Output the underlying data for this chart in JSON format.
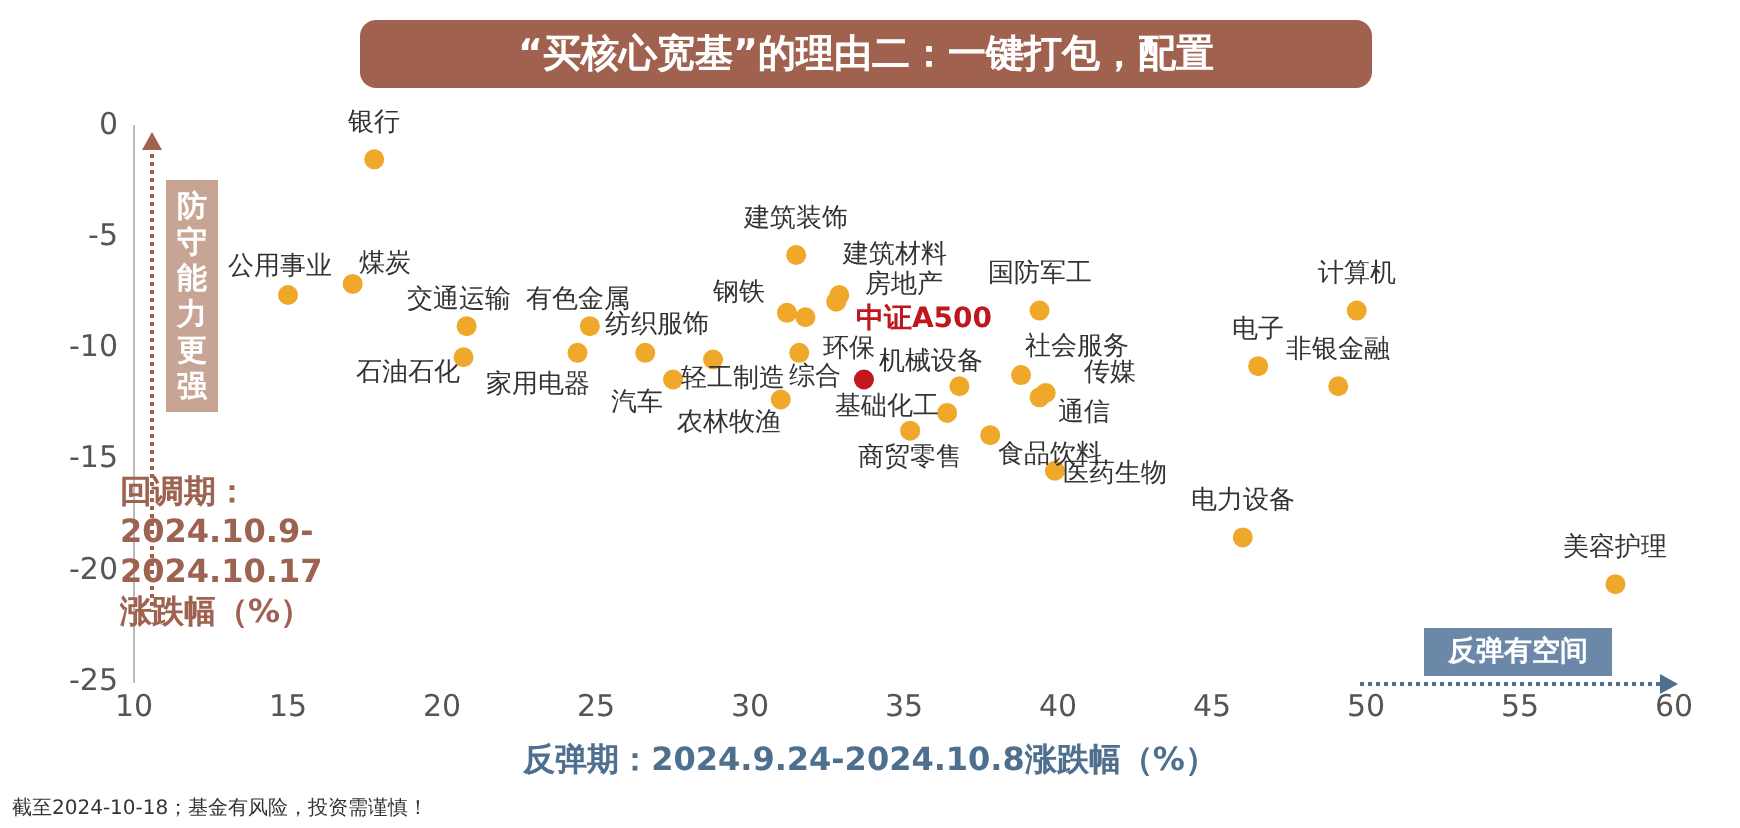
{
  "chart_data": {
    "type": "scatter",
    "title": "“买核心宽基”的理由二：一键打包，配置",
    "xlabel": "反弹期：2024.9.24-2024.10.8涨跌幅（%）",
    "ylabel": "回调期：\n2024.10.9-\n2024.10.17\n涨跌幅（%）",
    "xlim": [
      10,
      60
    ],
    "xticks": [
      10,
      15,
      20,
      25,
      30,
      35,
      40,
      45,
      50,
      55,
      60
    ],
    "ylim": [
      -25,
      0
    ],
    "yticks": [
      -25,
      -20,
      -15,
      -10,
      -5,
      0
    ],
    "grid": false,
    "legend": false,
    "marker": "circle",
    "annotations": [
      "防守能力更强",
      "反弹有空间",
      "截至2024-10-18；基金有风险，投资需谨慎！"
    ],
    "series": [
      {
        "name": "银行",
        "color": "#f0a82a",
        "x": [
          17.8
        ],
        "values": [
          -1.5
        ]
      },
      {
        "name": "公用事业",
        "color": "#f0a82a",
        "x": [
          15.0
        ],
        "values": [
          -7.6
        ]
      },
      {
        "name": "煤炭",
        "color": "#f0a82a",
        "x": [
          17.1
        ],
        "values": [
          -7.1
        ]
      },
      {
        "name": "交通运输",
        "color": "#f0a82a",
        "x": [
          20.8
        ],
        "values": [
          -9.0
        ]
      },
      {
        "name": "石油石化",
        "color": "#f0a82a",
        "x": [
          20.7
        ],
        "values": [
          -10.4
        ]
      },
      {
        "name": "家用电器",
        "color": "#f0a82a",
        "x": [
          24.4
        ],
        "values": [
          -10.2
        ]
      },
      {
        "name": "有色金属",
        "color": "#f0a82a",
        "x": [
          24.8
        ],
        "values": [
          -9.0
        ]
      },
      {
        "name": "纺织服饰",
        "color": "#f0a82a",
        "x": [
          26.6
        ],
        "values": [
          -10.2
        ]
      },
      {
        "name": "汽车",
        "color": "#f0a82a",
        "x": [
          27.5
        ],
        "values": [
          -11.4
        ]
      },
      {
        "name": "轻工制造",
        "color": "#f0a82a",
        "x": [
          28.8
        ],
        "values": [
          -10.5
        ]
      },
      {
        "name": "农林牧渔",
        "color": "#f0a82a",
        "x": [
          31.0
        ],
        "values": [
          -12.3
        ]
      },
      {
        "name": "钢铁",
        "color": "#f0a82a",
        "x": [
          31.2
        ],
        "values": [
          -8.4
        ]
      },
      {
        "name": "环保",
        "color": "#f0a82a",
        "x": [
          31.8
        ],
        "values": [
          -8.6
        ]
      },
      {
        "name": "综合",
        "color": "#f0a82a",
        "x": [
          31.6
        ],
        "values": [
          -10.2
        ]
      },
      {
        "name": "建筑装饰",
        "color": "#f0a82a",
        "x": [
          31.5
        ],
        "values": [
          -5.8
        ]
      },
      {
        "name": "建筑材料",
        "color": "#f0a82a",
        "x": [
          32.9
        ],
        "values": [
          -7.6
        ]
      },
      {
        "name": "房地产",
        "color": "#f0a82a",
        "x": [
          32.8
        ],
        "values": [
          -7.9
        ]
      },
      {
        "name": "中证A500",
        "color": "#c0161e",
        "x": [
          33.7
        ],
        "values": [
          -11.4
        ]
      },
      {
        "name": "机械设备",
        "color": "#f0a82a",
        "x": [
          36.8
        ],
        "values": [
          -11.7
        ]
      },
      {
        "name": "社会服务",
        "color": "#f0a82a",
        "x": [
          38.8
        ],
        "values": [
          -11.2
        ]
      },
      {
        "name": "通信",
        "color": "#f0a82a",
        "x": [
          39.4
        ],
        "values": [
          -12.2
        ]
      },
      {
        "name": "传媒",
        "color": "#f0a82a",
        "x": [
          39.6
        ],
        "values": [
          -12.0
        ]
      },
      {
        "name": "基础化工",
        "color": "#f0a82a",
        "x": [
          36.4
        ],
        "values": [
          -12.9
        ]
      },
      {
        "name": "商贸零售",
        "color": "#f0a82a",
        "x": [
          35.2
        ],
        "values": [
          -13.7
        ]
      },
      {
        "name": "食品饮料",
        "color": "#f0a82a",
        "x": [
          37.8
        ],
        "values": [
          -13.9
        ]
      },
      {
        "name": "医药生物",
        "color": "#f0a82a",
        "x": [
          39.9
        ],
        "values": [
          -15.5
        ]
      },
      {
        "name": "国防军工",
        "color": "#f0a82a",
        "x": [
          39.4
        ],
        "values": [
          -8.3
        ]
      },
      {
        "name": "电子",
        "color": "#f0a82a",
        "x": [
          46.5
        ],
        "values": [
          -10.8
        ]
      },
      {
        "name": "计算机",
        "color": "#f0a82a",
        "x": [
          49.7
        ],
        "values": [
          -8.3
        ]
      },
      {
        "name": "非银金融",
        "color": "#f0a82a",
        "x": [
          49.1
        ],
        "values": [
          -11.7
        ]
      },
      {
        "name": "电力设备",
        "color": "#f0a82a",
        "x": [
          46.0
        ],
        "values": [
          -18.5
        ]
      },
      {
        "name": "美容护理",
        "color": "#f0a82a",
        "x": [
          58.1
        ],
        "values": [
          -20.6
        ]
      }
    ]
  }
}
